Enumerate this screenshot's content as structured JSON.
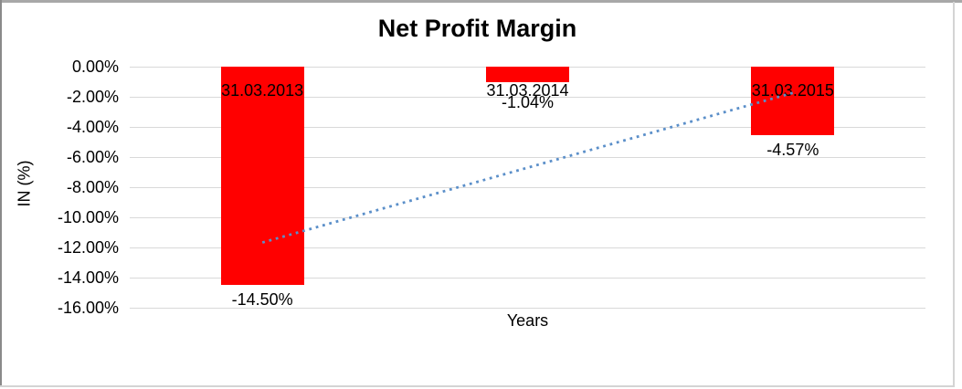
{
  "chart_data": {
    "type": "bar",
    "title": "Net Profit Margin",
    "xlabel": "Years",
    "ylabel": "IN (%)",
    "categories": [
      "31.03.2013",
      "31.03.2014",
      "31.03.2015"
    ],
    "values": [
      -14.5,
      -1.04,
      -4.57
    ],
    "data_labels": [
      "-14.50%",
      "-1.04%",
      "-4.57%"
    ],
    "y_tick_values": [
      0,
      -2,
      -4,
      -6,
      -8,
      -10,
      -12,
      -14,
      -16
    ],
    "y_tick_labels": [
      "0.00%",
      "-2.00%",
      "-4.00%",
      "-6.00%",
      "-8.00%",
      "-10.00%",
      "-12.00%",
      "-14.00%",
      "-16.00%"
    ],
    "ylim": [
      -16,
      0
    ],
    "grid": true,
    "legend": "none",
    "bar_color": "#ff0000",
    "gridline_color": "#d9d9d9",
    "text_color": "#000000",
    "trendline": {
      "type": "linear",
      "style": "dotted",
      "color": "#5b8fc9",
      "start_value": -11.67,
      "end_value": -1.74
    }
  }
}
